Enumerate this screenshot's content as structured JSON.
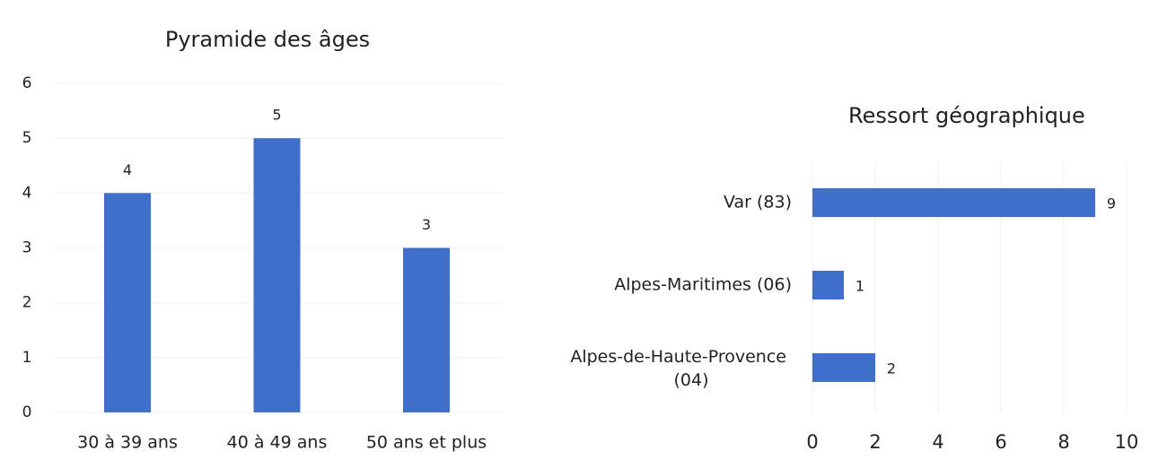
{
  "chart_data": [
    {
      "type": "bar",
      "title": "Pyramide des âges",
      "categories": [
        "30 à 39 ans",
        "40 à 49 ans",
        "50 ans et plus"
      ],
      "values": [
        4,
        5,
        3
      ],
      "color": "#3f6fca",
      "ylim": [
        0,
        6
      ],
      "yticks": [
        0,
        1,
        2,
        3,
        4,
        5,
        6
      ],
      "grid": true
    },
    {
      "type": "hbar",
      "title": "Ressort géographique",
      "categories": [
        "Var (83)",
        "Alpes-Maritimes (06)",
        "Alpes-de-Haute-Provence (04)"
      ],
      "values": [
        9,
        1,
        2
      ],
      "color": "#3f6fca",
      "xlim": [
        0,
        10
      ],
      "xticks": [
        0,
        2,
        4,
        6,
        8,
        10
      ],
      "grid": true
    }
  ]
}
